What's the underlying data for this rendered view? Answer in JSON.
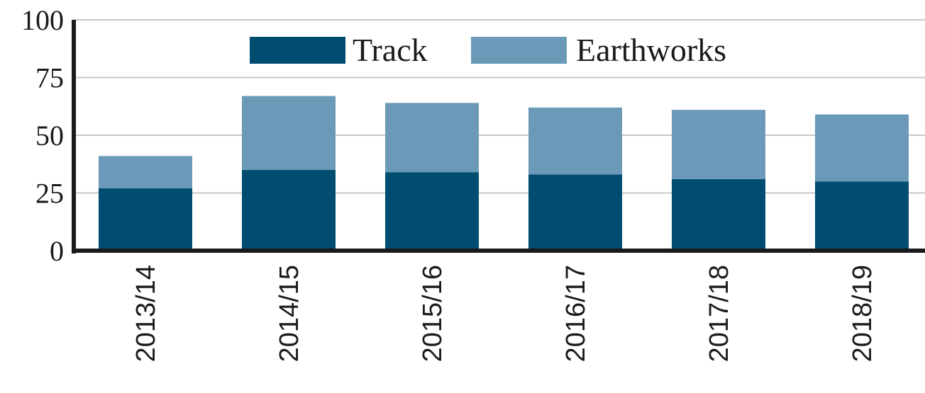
{
  "chart_data": {
    "type": "bar",
    "stacked": true,
    "title": "",
    "xlabel": "",
    "ylabel": "",
    "ylim": [
      0,
      100
    ],
    "yticks": [
      "0",
      "25",
      "50",
      "75",
      "100"
    ],
    "grid": true,
    "legend_position": "top-center",
    "categories": [
      "2013/14",
      "2014/15",
      "2015/16",
      "2016/17",
      "2017/18",
      "2018/19"
    ],
    "series": [
      {
        "name": "Track",
        "color": "#004d71",
        "values": [
          27,
          35,
          34,
          33,
          31,
          30
        ]
      },
      {
        "name": "Earthworks",
        "color": "#6b9ab8",
        "values": [
          14,
          32,
          30,
          29,
          30,
          29
        ]
      }
    ]
  }
}
